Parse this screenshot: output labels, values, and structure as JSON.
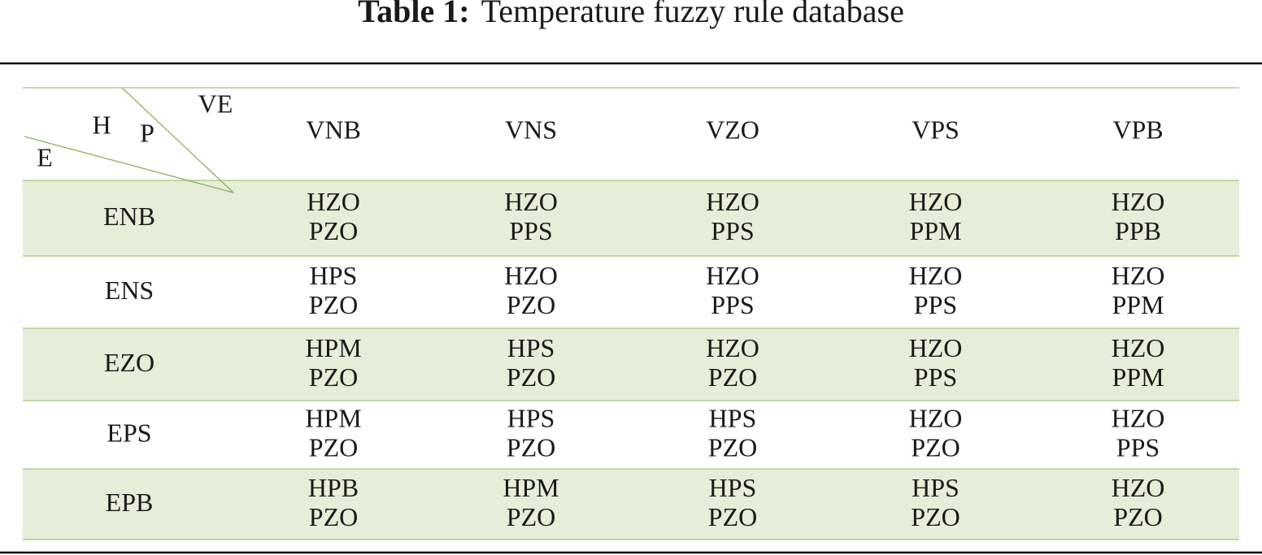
{
  "title": {
    "label": "Table 1:",
    "text": "Temperature fuzzy rule database"
  },
  "table": {
    "corner": {
      "top": "VE",
      "middle_left": "H",
      "middle_right": "P",
      "bottom": "E"
    },
    "columns": [
      "VNB",
      "VNS",
      "VZO",
      "VPS",
      "VPB"
    ],
    "rows": [
      {
        "label": "ENB",
        "cells": [
          [
            "HZO",
            "PZO"
          ],
          [
            "HZO",
            "PPS"
          ],
          [
            "HZO",
            "PPS"
          ],
          [
            "HZO",
            "PPM"
          ],
          [
            "HZO",
            "PPB"
          ]
        ]
      },
      {
        "label": "ENS",
        "cells": [
          [
            "HPS",
            "PZO"
          ],
          [
            "HZO",
            "PZO"
          ],
          [
            "HZO",
            "PPS"
          ],
          [
            "HZO",
            "PPS"
          ],
          [
            "HZO",
            "PPM"
          ]
        ]
      },
      {
        "label": "EZO",
        "cells": [
          [
            "HPM",
            "PZO"
          ],
          [
            "HPS",
            "PZO"
          ],
          [
            "HZO",
            "PZO"
          ],
          [
            "HZO",
            "PPS"
          ],
          [
            "HZO",
            "PPM"
          ]
        ]
      },
      {
        "label": "EPS",
        "cells": [
          [
            "HPM",
            "PZO"
          ],
          [
            "HPS",
            "PZO"
          ],
          [
            "HPS",
            "PZO"
          ],
          [
            "HZO",
            "PZO"
          ],
          [
            "HZO",
            "PPS"
          ]
        ]
      },
      {
        "label": "EPB",
        "cells": [
          [
            "HPB",
            "PZO"
          ],
          [
            "HPM",
            "PZO"
          ],
          [
            "HPS",
            "PZO"
          ],
          [
            "HPS",
            "PZO"
          ],
          [
            "HZO",
            "PZO"
          ]
        ]
      }
    ]
  }
}
